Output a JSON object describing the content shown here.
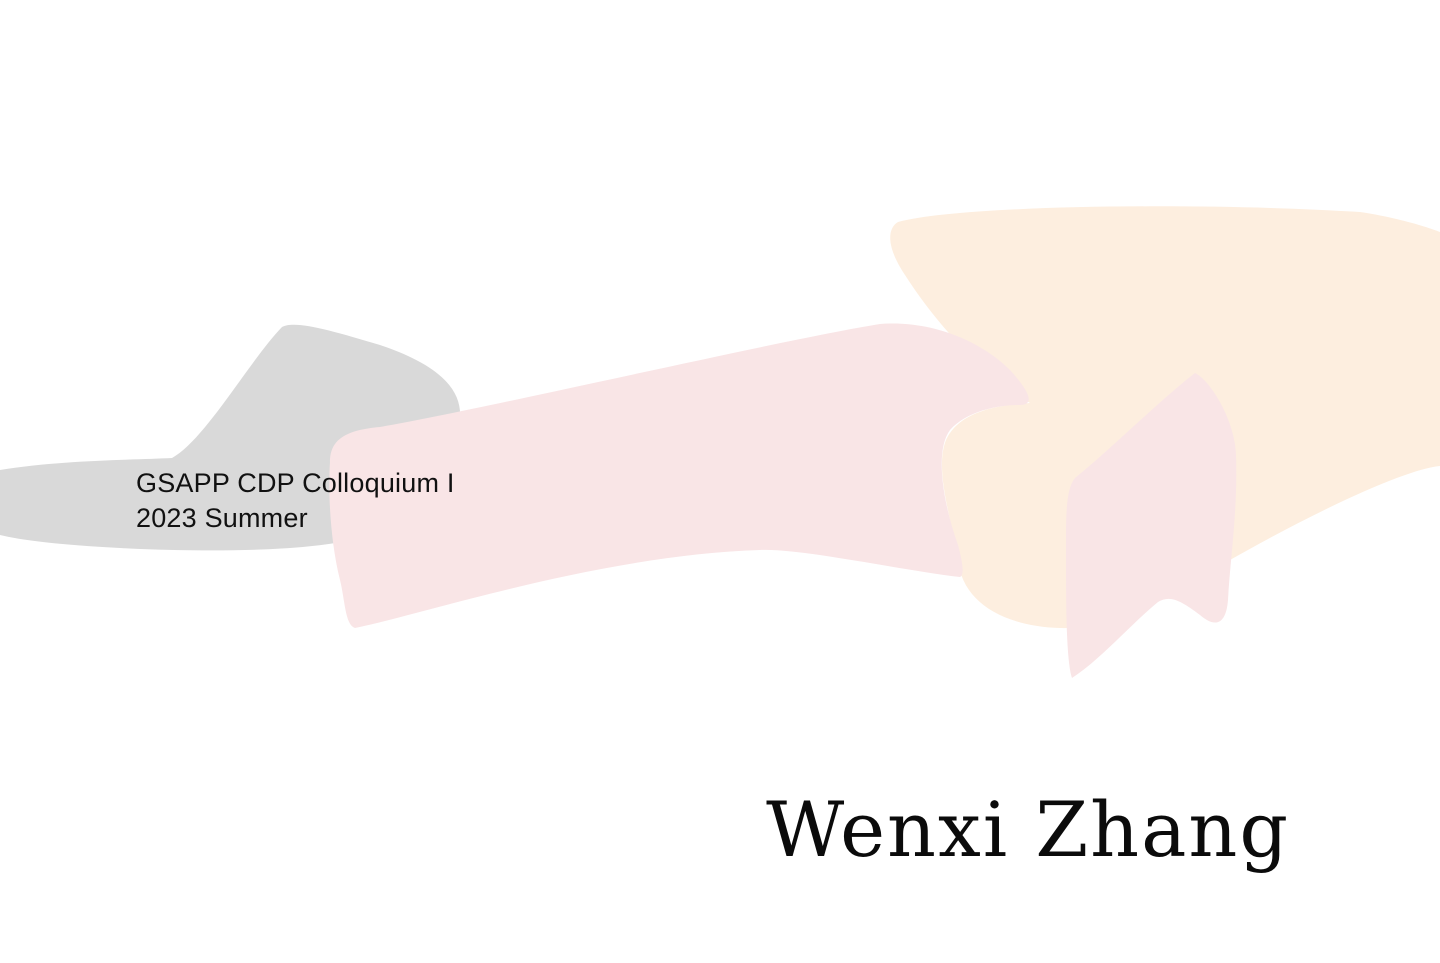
{
  "cover": {
    "course_title": "GSAPP CDP Colloquium I",
    "term": "2023 Summer",
    "author_name": "Wenxi Zhang"
  },
  "colors": {
    "background": "#ffffff",
    "gray_shape": "#d9d9d9",
    "pink_shape": "#f9e5e6",
    "peach_shape": "#fdeedf",
    "text": "#111111"
  }
}
